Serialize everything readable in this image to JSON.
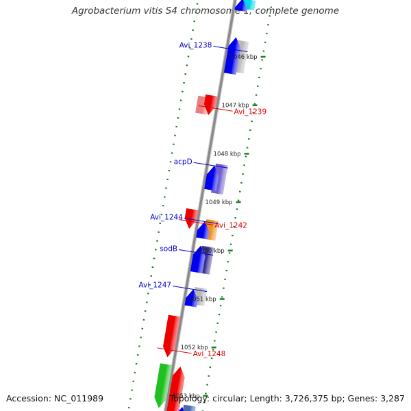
{
  "title": "Agrobacterium vitis S4 chromosome 1, complete genome",
  "footer": {
    "accession": "Accession: NC_011989",
    "topology": "Topology: circular; Length: 3,726,375 bp; Genes: 3,287"
  },
  "colors": {
    "backbone": "#8a8a8a",
    "forward_label": "#0000cc",
    "reverse_label": "#dd0000",
    "tick": "#1f7a1f",
    "cds_forward": "#0000ee",
    "cds_reverse": "#ee0000"
  },
  "axis": {
    "unit": "kbp",
    "ticks": [
      {
        "value": 1046,
        "label": "1046 kbp"
      },
      {
        "value": 1047,
        "label": "1047 kbp"
      },
      {
        "value": 1048,
        "label": "1048 kbp"
      },
      {
        "value": 1049,
        "label": "1049 kbp"
      },
      {
        "value": 1050,
        "label": "1050 kbp"
      },
      {
        "value": 1051,
        "label": "1051 kbp"
      },
      {
        "value": 1052,
        "label": "1052 kbp"
      },
      {
        "value": 1053,
        "label": "1053 kbp"
      }
    ]
  },
  "labels": {
    "forward": [
      {
        "id": "avi1238",
        "text": "Avi_1238",
        "kbp": 1045.95
      },
      {
        "id": "acpd",
        "text": "acpD",
        "kbp": 1048.35
      },
      {
        "id": "avi1244",
        "text": "Avi_1244",
        "kbp": 1049.5
      },
      {
        "id": "sodb",
        "text": "sodB",
        "kbp": 1050.15
      },
      {
        "id": "avi1247",
        "text": "Avi_1247",
        "kbp": 1050.9
      }
    ],
    "reverse": [
      {
        "id": "avi1239",
        "text": "Avi_1239",
        "kbp": 1047.2
      },
      {
        "id": "avi1242",
        "text": "Avi_1242",
        "kbp": 1049.55
      },
      {
        "id": "avi1248",
        "text": "Avi_1248",
        "kbp": 1052.2
      }
    ]
  },
  "features": [
    {
      "kind": "feature",
      "lane": -1,
      "start": 1044.9,
      "end": 1045.1,
      "color": "#00d8e6"
    },
    {
      "kind": "cds",
      "lane": -0.5,
      "start": 1044.9,
      "end": 1045.15,
      "color": "#0000ee"
    },
    {
      "kind": "feature",
      "lane": -1,
      "start": 1045.75,
      "end": 1046.4,
      "color": "#b8b8b8"
    },
    {
      "kind": "cds",
      "lane": -0.5,
      "start": 1045.7,
      "end": 1046.45,
      "color": "#0000ee"
    },
    {
      "kind": "feature",
      "lane": 1,
      "start": 1047.0,
      "end": 1047.35,
      "color": "#e88080"
    },
    {
      "kind": "cds",
      "lane": 0.5,
      "start": 1046.95,
      "end": 1047.35,
      "color": "#ee0000"
    },
    {
      "kind": "feature",
      "lane": -1,
      "start": 1048.3,
      "end": 1048.9,
      "color": "#7060d0"
    },
    {
      "kind": "cds",
      "lane": -0.5,
      "start": 1048.35,
      "end": 1048.85,
      "color": "#0000ee"
    },
    {
      "kind": "cds",
      "lane": 0.5,
      "start": 1049.3,
      "end": 1049.7,
      "color": "#ee0000"
    },
    {
      "kind": "feature",
      "lane": -1,
      "start": 1049.45,
      "end": 1049.85,
      "color": "#f09020"
    },
    {
      "kind": "cds",
      "lane": -0.5,
      "start": 1049.5,
      "end": 1049.85,
      "color": "#0000ee"
    },
    {
      "kind": "feature",
      "lane": -1,
      "start": 1050.0,
      "end": 1050.55,
      "color": "#3a3290"
    },
    {
      "kind": "cds",
      "lane": -0.5,
      "start": 1050.0,
      "end": 1050.55,
      "color": "#0000ee"
    },
    {
      "kind": "feature",
      "lane": -1,
      "start": 1050.85,
      "end": 1051.2,
      "color": "#b8b8b8"
    },
    {
      "kind": "cds",
      "lane": -0.5,
      "start": 1050.9,
      "end": 1051.25,
      "color": "#0000ee"
    },
    {
      "kind": "cds",
      "lane": 0.5,
      "start": 1051.5,
      "end": 1052.35,
      "color": "#ee0000"
    },
    {
      "kind": "cds",
      "lane": -0.5,
      "start": 1052.5,
      "end": 1053.45,
      "color": "#ee0000"
    },
    {
      "kind": "cds",
      "lane": 0.5,
      "start": 1052.5,
      "end": 1053.4,
      "color": "#20c020"
    },
    {
      "kind": "feature",
      "lane": -1.6,
      "start": 1053.25,
      "end": 1053.45,
      "color": "#4a6ab0"
    },
    {
      "kind": "cds",
      "lane": -1.1,
      "start": 1053.3,
      "end": 1053.45,
      "color": "#0000ee"
    }
  ]
}
